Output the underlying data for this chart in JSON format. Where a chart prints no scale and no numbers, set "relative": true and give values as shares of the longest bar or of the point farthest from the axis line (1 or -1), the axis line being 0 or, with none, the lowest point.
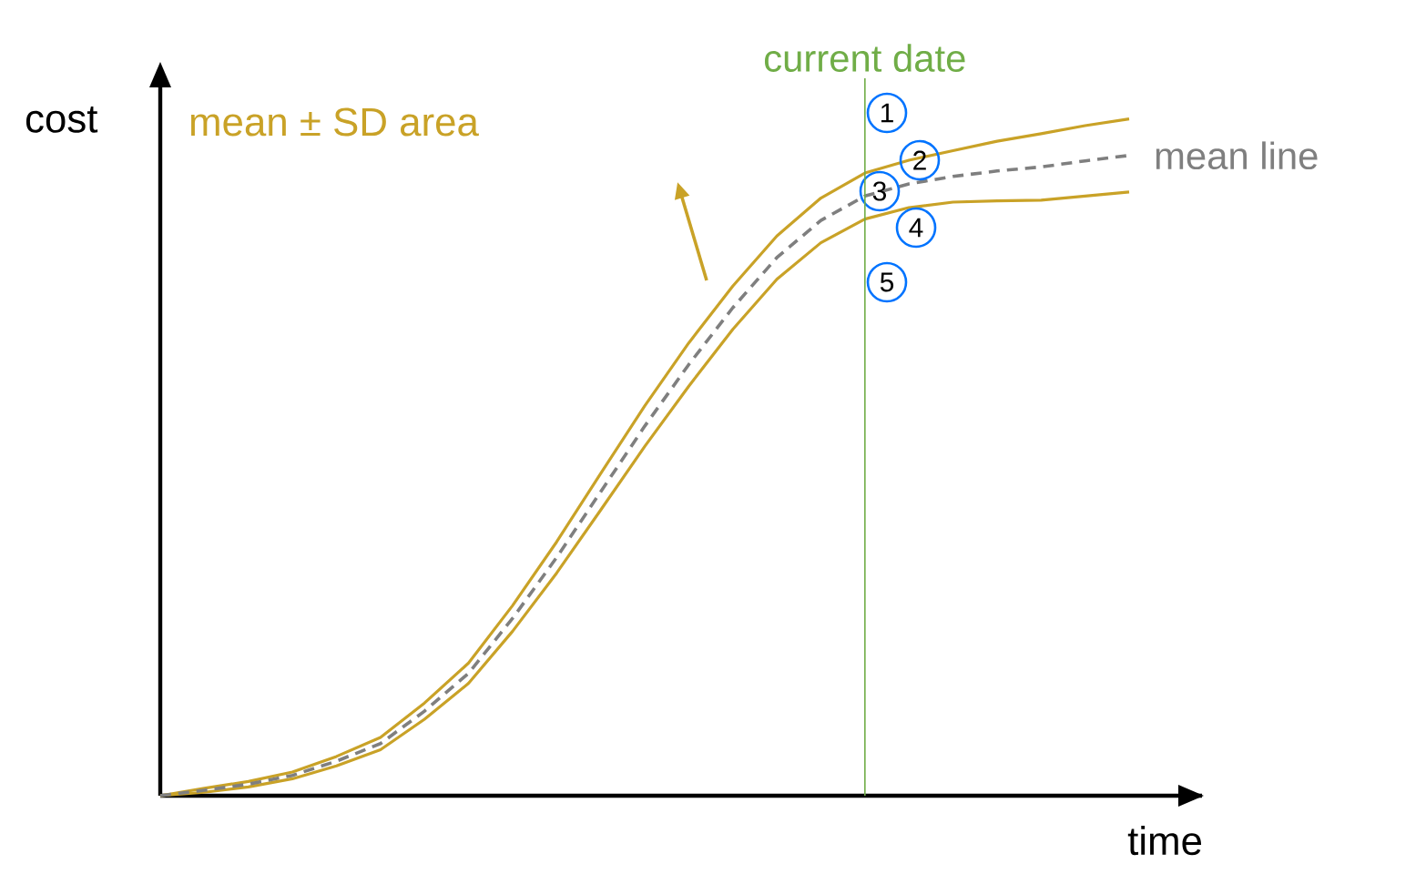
{
  "chart_data": {
    "type": "line",
    "relative": true,
    "xlabel": "time",
    "ylabel": "cost",
    "legend": false,
    "marker": "none",
    "categories": [
      null,
      null,
      null,
      null,
      null,
      null,
      null,
      null,
      null,
      null,
      null,
      null,
      null,
      null,
      null,
      null,
      null,
      null,
      null,
      null,
      null,
      null,
      null
    ],
    "series": [
      {
        "color": "#c9a227",
        "line_style": "solid",
        "values": [
          0,
          0.011,
          0.021,
          0.035,
          0.058,
          0.086,
          0.137,
          0.196,
          0.281,
          0.375,
          0.476,
          0.576,
          0.669,
          0.753,
          0.827,
          0.883,
          0.92,
          0.939,
          0.953,
          0.967,
          0.978,
          0.99,
          1.0
        ]
      },
      {
        "color": "#c9a227",
        "line_style": "solid",
        "values": [
          0,
          0.005,
          0.013,
          0.025,
          0.044,
          0.068,
          0.113,
          0.166,
          0.243,
          0.329,
          0.422,
          0.516,
          0.605,
          0.689,
          0.763,
          0.817,
          0.852,
          0.869,
          0.877,
          0.879,
          0.88,
          0.886,
          0.892
        ]
      },
      {
        "name": "mean line",
        "color": "#7f7f7f",
        "line_style": "dashed",
        "values": [
          0,
          0.008,
          0.017,
          0.03,
          0.051,
          0.077,
          0.125,
          0.181,
          0.262,
          0.352,
          0.449,
          0.546,
          0.637,
          0.721,
          0.795,
          0.85,
          0.886,
          0.904,
          0.915,
          0.923,
          0.929,
          0.938,
          0.946
        ]
      }
    ],
    "annotations": [
      "mean ± SD area",
      "1",
      "2",
      "3",
      "4",
      "5",
      "current date"
    ]
  }
}
